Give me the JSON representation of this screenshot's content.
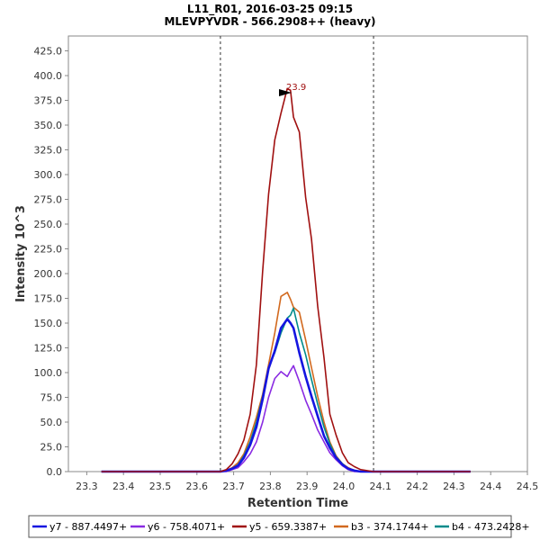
{
  "chart_data": {
    "type": "line",
    "title": "L11_R01, 2016-03-25 09:15",
    "subtitle": "MLEVPYVDR - 566.2908++ (heavy)",
    "xlabel": "Retention Time",
    "ylabel": "Intensity 10^3",
    "xlim": [
      23.25,
      24.5
    ],
    "ylim": [
      0,
      440
    ],
    "xticks": [
      23.3,
      23.4,
      23.5,
      23.6,
      23.7,
      23.8,
      23.9,
      24.0,
      24.1,
      24.2,
      24.3,
      24.4,
      24.5
    ],
    "yticks": [
      0,
      25,
      50,
      75,
      100,
      125,
      150,
      175,
      200,
      225,
      250,
      275,
      300,
      325,
      350,
      375,
      400,
      425
    ],
    "boundaries": [
      23.664,
      24.081
    ],
    "peak_annotation": {
      "text": "23.9",
      "x": 23.855,
      "y": 388,
      "color": "#a01010"
    },
    "x": [
      23.34,
      23.664,
      23.68,
      23.696,
      23.712,
      23.728,
      23.745,
      23.762,
      23.779,
      23.795,
      23.812,
      23.829,
      23.846,
      23.855,
      23.863,
      23.879,
      23.896,
      23.912,
      23.929,
      23.946,
      23.962,
      23.979,
      23.996,
      24.012,
      24.029,
      24.046,
      24.081,
      24.1,
      24.345
    ],
    "series": [
      {
        "name": "y7 - 887.4497+",
        "color": "#1515e0",
        "width": 2.6,
        "values": [
          0,
          0,
          1,
          3,
          6,
          14,
          27,
          45,
          73,
          104,
          122,
          145,
          154,
          150,
          145,
          120,
          96,
          76,
          56,
          36,
          24,
          14,
          7,
          3,
          1,
          0,
          0,
          0,
          0
        ]
      },
      {
        "name": "y6 - 758.4071+",
        "color": "#8a2be2",
        "width": 1.6,
        "values": [
          0,
          0,
          0,
          2,
          4,
          10,
          18,
          30,
          50,
          75,
          94,
          101,
          96,
          102,
          107,
          91,
          72,
          58,
          42,
          30,
          19,
          12,
          6,
          2,
          0,
          0,
          0,
          0,
          0
        ]
      },
      {
        "name": "y5 - 659.3387+",
        "color": "#a01010",
        "width": 1.6,
        "values": [
          0,
          0,
          2,
          8,
          18,
          32,
          58,
          108,
          202,
          280,
          335,
          362,
          387,
          385,
          358,
          343,
          277,
          235,
          167,
          115,
          58,
          37,
          19,
          9,
          5,
          2,
          0,
          0,
          0
        ]
      },
      {
        "name": "b3 - 374.1744+",
        "color": "#d2691e",
        "width": 1.6,
        "values": [
          0,
          0,
          1,
          4,
          9,
          18,
          35,
          55,
          78,
          108,
          140,
          177,
          181,
          174,
          166,
          161,
          133,
          105,
          76,
          50,
          30,
          16,
          8,
          4,
          1,
          0,
          0,
          0,
          0
        ]
      },
      {
        "name": "b4 - 473.2428+",
        "color": "#008b8b",
        "width": 1.6,
        "values": [
          0,
          0,
          1,
          3,
          7,
          16,
          30,
          50,
          76,
          105,
          120,
          140,
          155,
          158,
          165,
          140,
          118,
          93,
          68,
          45,
          28,
          15,
          8,
          3,
          1,
          0,
          0,
          0,
          0
        ]
      }
    ]
  }
}
